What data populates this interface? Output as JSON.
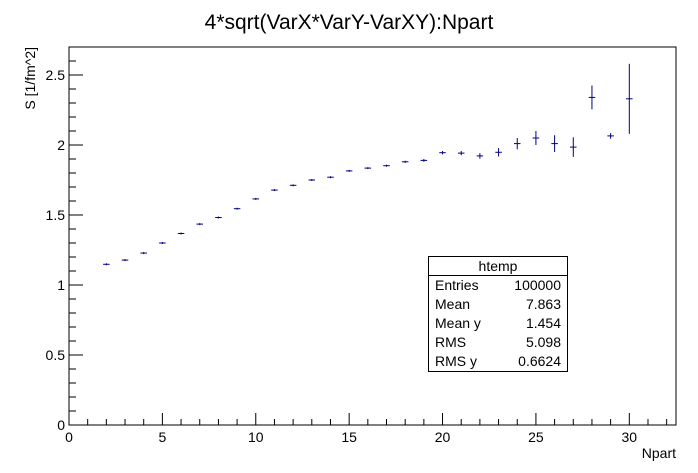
{
  "chart_data": {
    "type": "scatter",
    "title": "4*sqrt(VarX*VarY-VarXY):Npart",
    "xlabel": "Npart",
    "ylabel": "S [1/fm^2]",
    "xlim": [
      0,
      32.5
    ],
    "ylim": [
      0,
      2.7
    ],
    "x_ticks": [
      0,
      5,
      10,
      15,
      20,
      25,
      30
    ],
    "x_tick_labels": [
      "0",
      "5",
      "10",
      "15",
      "20",
      "25",
      "30"
    ],
    "y_ticks": [
      0,
      0.5,
      1,
      1.5,
      2,
      2.5
    ],
    "y_tick_labels": [
      "0",
      "0.5",
      "1",
      "1.5",
      "2",
      "2.5"
    ],
    "grid": false,
    "series": [
      {
        "color": "#000080",
        "points": [
          {
            "x": 2,
            "y": 1.148,
            "err": 0.003
          },
          {
            "x": 3,
            "y": 1.178,
            "err": 0.003
          },
          {
            "x": 4,
            "y": 1.228,
            "err": 0.003
          },
          {
            "x": 5,
            "y": 1.3,
            "err": 0.003
          },
          {
            "x": 6,
            "y": 1.368,
            "err": 0.003
          },
          {
            "x": 7,
            "y": 1.435,
            "err": 0.003
          },
          {
            "x": 8,
            "y": 1.482,
            "err": 0.003
          },
          {
            "x": 9,
            "y": 1.545,
            "err": 0.003
          },
          {
            "x": 10,
            "y": 1.615,
            "err": 0.004
          },
          {
            "x": 11,
            "y": 1.678,
            "err": 0.004
          },
          {
            "x": 12,
            "y": 1.712,
            "err": 0.004
          },
          {
            "x": 13,
            "y": 1.75,
            "err": 0.004
          },
          {
            "x": 14,
            "y": 1.77,
            "err": 0.005
          },
          {
            "x": 15,
            "y": 1.815,
            "err": 0.005
          },
          {
            "x": 16,
            "y": 1.835,
            "err": 0.006
          },
          {
            "x": 17,
            "y": 1.852,
            "err": 0.007
          },
          {
            "x": 18,
            "y": 1.88,
            "err": 0.008
          },
          {
            "x": 19,
            "y": 1.89,
            "err": 0.01
          },
          {
            "x": 20,
            "y": 1.945,
            "err": 0.012
          },
          {
            "x": 21,
            "y": 1.942,
            "err": 0.015
          },
          {
            "x": 22,
            "y": 1.922,
            "err": 0.02
          },
          {
            "x": 23,
            "y": 1.948,
            "err": 0.03
          },
          {
            "x": 24,
            "y": 2.01,
            "err": 0.04
          },
          {
            "x": 25,
            "y": 2.05,
            "err": 0.05
          },
          {
            "x": 26,
            "y": 2.01,
            "err": 0.06
          },
          {
            "x": 27,
            "y": 1.985,
            "err": 0.07
          },
          {
            "x": 28,
            "y": 2.34,
            "err": 0.085
          },
          {
            "x": 29,
            "y": 2.065,
            "err": 0.02
          },
          {
            "x": 30,
            "y": 2.33,
            "err": 0.25
          }
        ]
      }
    ]
  },
  "stats": {
    "title": "htemp",
    "rows": [
      {
        "label": "Entries",
        "value": "100000"
      },
      {
        "label": "Mean",
        "value": "7.863"
      },
      {
        "label": "Mean y",
        "value": "1.454"
      },
      {
        "label": "RMS",
        "value": "5.098"
      },
      {
        "label": "RMS y",
        "value": "0.6624"
      }
    ]
  }
}
